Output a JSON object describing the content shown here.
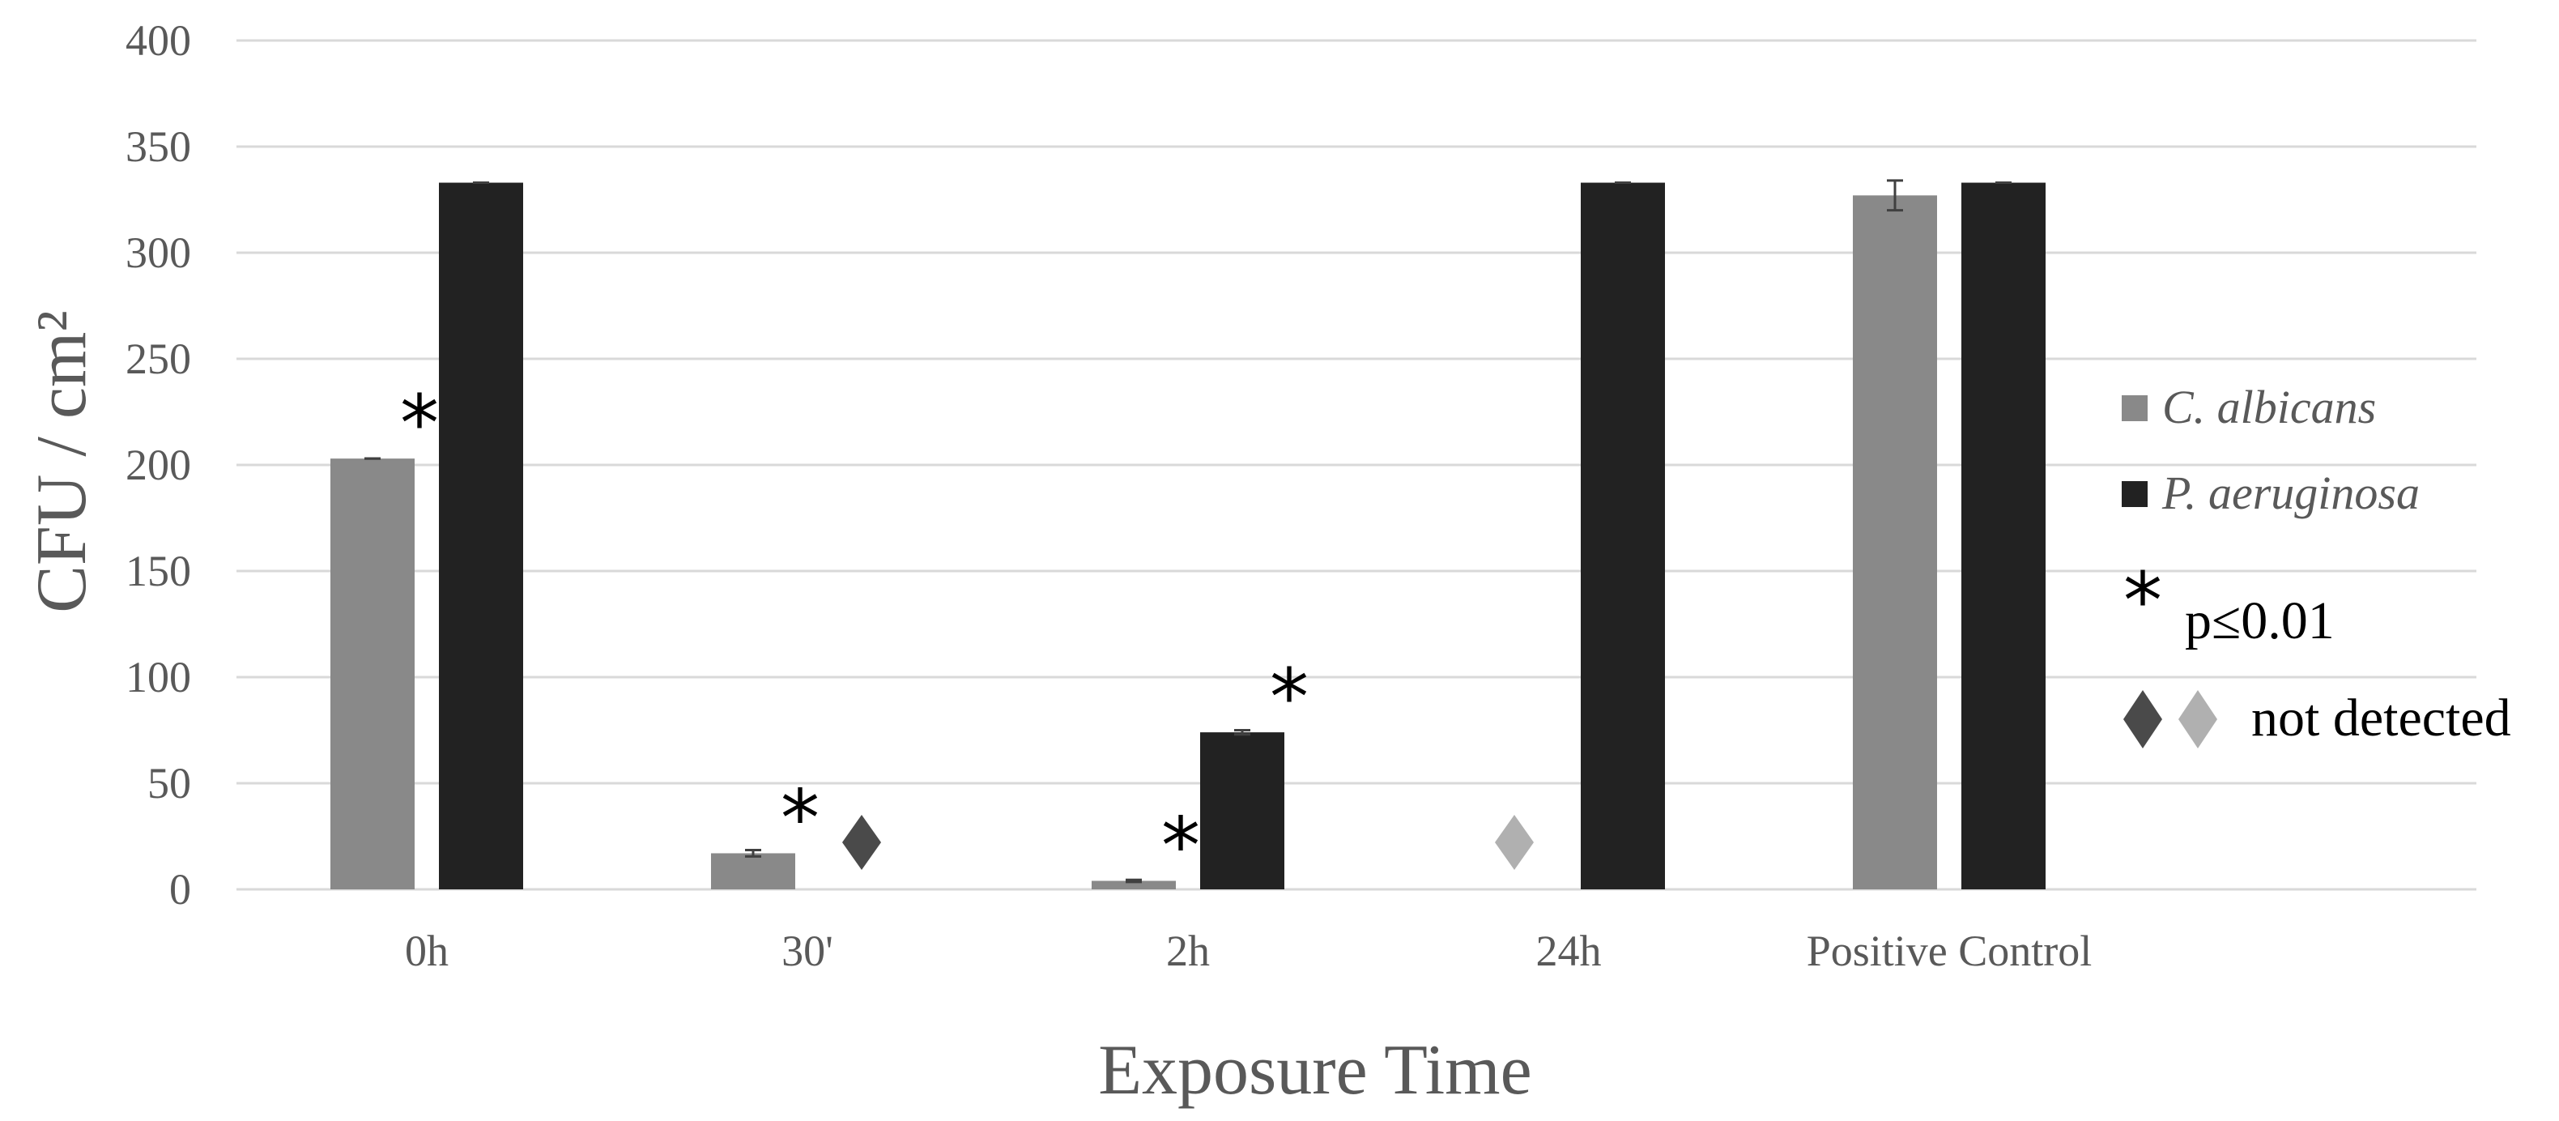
{
  "chart_data": {
    "type": "bar",
    "xlabel": "Exposure Time",
    "ylabel": "CFU / cm²",
    "ylim": [
      0,
      400
    ],
    "yticks": [
      0,
      50,
      100,
      150,
      200,
      250,
      300,
      350,
      400
    ],
    "grid": true,
    "legend_position": "right",
    "categories": [
      "0h",
      "30'",
      "2h",
      "24h",
      "Positive Control"
    ],
    "series": [
      {
        "name": "C. albicans",
        "color": "#898989",
        "values": [
          203,
          17,
          4,
          null,
          327
        ],
        "errors": [
          0,
          1.5,
          0.5,
          null,
          7
        ],
        "significant": [
          true,
          true,
          true,
          false,
          false
        ],
        "not_detected": [
          false,
          false,
          false,
          true,
          false
        ]
      },
      {
        "name": "P. aeruginosa",
        "color": "#222222",
        "values": [
          333,
          null,
          74,
          333,
          333
        ],
        "errors": [
          0,
          null,
          1,
          0,
          0
        ],
        "significant": [
          false,
          false,
          true,
          false,
          false
        ],
        "not_detected": [
          false,
          true,
          false,
          false,
          false
        ]
      }
    ],
    "annotations": {
      "significance_symbol": "*",
      "significance_label": "p≤0.01",
      "not_detected_symbol": "♦",
      "not_detected_label": "not detected",
      "not_detected_colors": [
        "#4a4a4a",
        "#b0b0b0"
      ]
    }
  }
}
